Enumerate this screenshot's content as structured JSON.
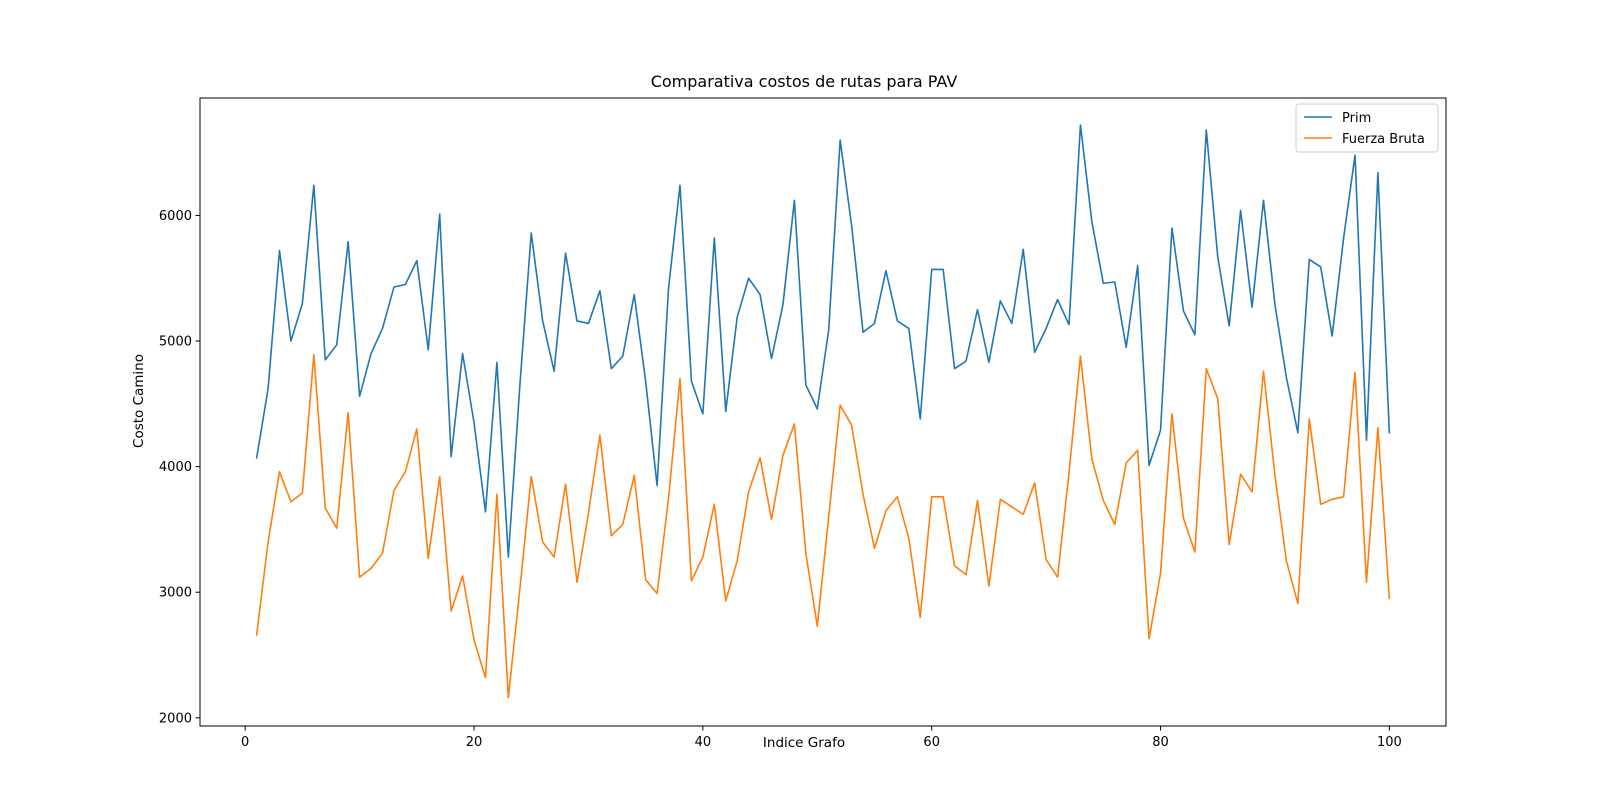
{
  "chart_data": {
    "type": "line",
    "title": "Comparativa costos de rutas para PAV",
    "xlabel": "Indice Grafo",
    "ylabel": "Costo Camino",
    "xlim": [
      -3.95,
      104.95
    ],
    "ylim": [
      1935,
      6935
    ],
    "xticks": [
      0,
      20,
      40,
      60,
      80,
      100
    ],
    "yticks": [
      2000,
      3000,
      4000,
      5000,
      6000
    ],
    "legend": "top-right",
    "grid": false,
    "x": [
      1,
      2,
      3,
      4,
      5,
      6,
      7,
      8,
      9,
      10,
      11,
      12,
      13,
      14,
      15,
      16,
      17,
      18,
      19,
      20,
      21,
      22,
      23,
      24,
      25,
      26,
      27,
      28,
      29,
      30,
      31,
      32,
      33,
      34,
      35,
      36,
      37,
      38,
      39,
      40,
      41,
      42,
      43,
      44,
      45,
      46,
      47,
      48,
      49,
      50,
      51,
      52,
      53,
      54,
      55,
      56,
      57,
      58,
      59,
      60,
      61,
      62,
      63,
      64,
      65,
      66,
      67,
      68,
      69,
      70,
      71,
      72,
      73,
      74,
      75,
      76,
      77,
      78,
      79,
      80,
      81,
      82,
      83,
      84,
      85,
      86,
      87,
      88,
      89,
      90,
      91,
      92,
      93,
      94,
      95,
      96,
      97,
      98,
      99,
      100
    ],
    "series": [
      {
        "name": "Prim",
        "color": "#1f77b4",
        "values": [
          4070,
          4620,
          5720,
          5000,
          5300,
          6240,
          4850,
          4970,
          5790,
          4560,
          4900,
          5100,
          5430,
          5450,
          5640,
          4930,
          6010,
          4080,
          4900,
          4350,
          3640,
          4830,
          3280,
          4640,
          5860,
          5160,
          4760,
          5700,
          5160,
          5140,
          5400,
          4780,
          4880,
          5370,
          4680,
          3850,
          5420,
          6240,
          4680,
          4420,
          5820,
          4440,
          5190,
          5500,
          5370,
          4860,
          5290,
          6120,
          4650,
          4460,
          5090,
          6600,
          5920,
          5070,
          5140,
          5560,
          5160,
          5100,
          4380,
          5570,
          5570,
          4780,
          4840,
          5250,
          4830,
          5320,
          5140,
          5730,
          4910,
          5100,
          5330,
          5130,
          6720,
          5950,
          5460,
          5470,
          4950,
          5600,
          4010,
          4290,
          5900,
          5240,
          5050,
          6680,
          5670,
          5120,
          6040,
          5270,
          6120,
          5290,
          4710,
          4270,
          5650,
          5590,
          5040,
          5820,
          6480,
          4210,
          6340,
          4270
        ]
      },
      {
        "name": "Fuerza Bruta",
        "color": "#ff7f0e",
        "values": [
          2660,
          3400,
          3960,
          3720,
          3790,
          4890,
          3670,
          3510,
          4430,
          3120,
          3190,
          3310,
          3810,
          3960,
          4300,
          3270,
          3920,
          2850,
          3130,
          2620,
          2320,
          3780,
          2160,
          3020,
          3920,
          3400,
          3280,
          3860,
          3080,
          3630,
          4250,
          3450,
          3540,
          3930,
          3100,
          2990,
          3750,
          4700,
          3090,
          3280,
          3700,
          2930,
          3250,
          3800,
          4070,
          3580,
          4090,
          4340,
          3310,
          2730,
          3600,
          4490,
          4330,
          3780,
          3350,
          3650,
          3760,
          3430,
          2800,
          3760,
          3760,
          3210,
          3140,
          3730,
          3050,
          3740,
          3680,
          3620,
          3870,
          3260,
          3120,
          3950,
          4880,
          4060,
          3730,
          3540,
          4030,
          4130,
          2630,
          3150,
          4420,
          3590,
          3320,
          4780,
          4540,
          3380,
          3940,
          3800,
          4760,
          3930,
          3250,
          2910,
          4380,
          3700,
          3740,
          3760,
          4750,
          3080,
          4310,
          2950
        ]
      }
    ]
  }
}
